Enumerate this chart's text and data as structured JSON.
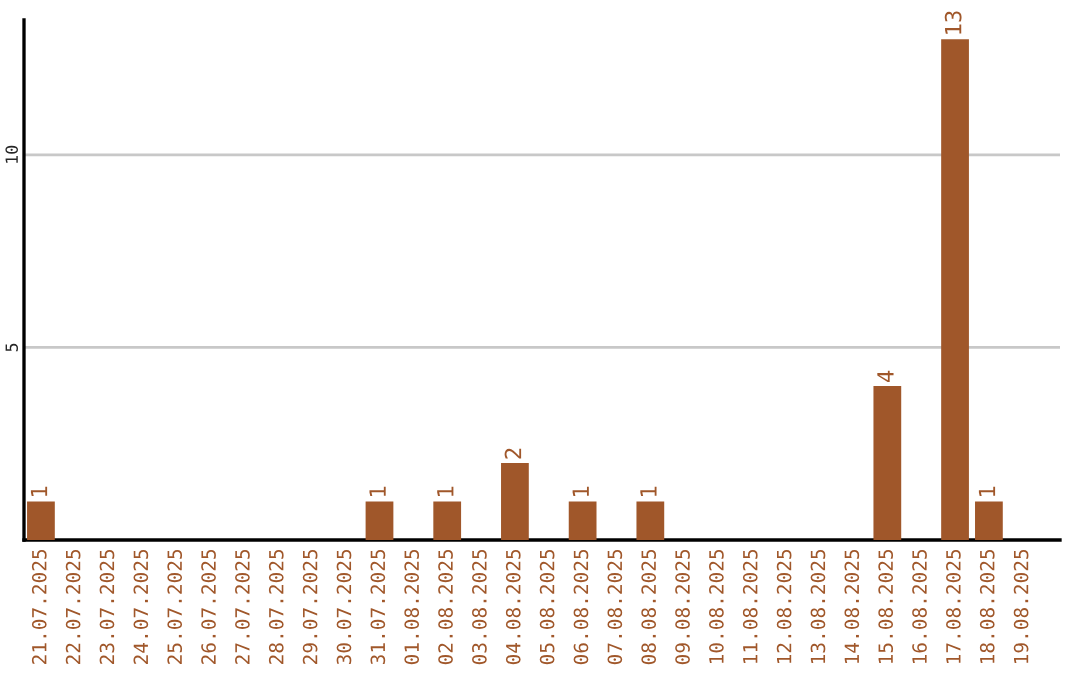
{
  "chart_data": {
    "type": "bar",
    "categories": [
      "21.07.2025",
      "22.07.2025",
      "23.07.2025",
      "24.07.2025",
      "25.07.2025",
      "26.07.2025",
      "27.07.2025",
      "28.07.2025",
      "29.07.2025",
      "30.07.2025",
      "31.07.2025",
      "01.08.2025",
      "02.08.2025",
      "03.08.2025",
      "04.08.2025",
      "05.08.2025",
      "06.08.2025",
      "07.08.2025",
      "08.08.2025",
      "09.08.2025",
      "10.08.2025",
      "11.08.2025",
      "12.08.2025",
      "13.08.2025",
      "14.08.2025",
      "15.08.2025",
      "16.08.2025",
      "17.08.2025",
      "18.08.2025",
      "19.08.2025"
    ],
    "values": [
      1,
      0,
      0,
      0,
      0,
      0,
      0,
      0,
      0,
      0,
      1,
      0,
      1,
      0,
      2,
      0,
      1,
      0,
      1,
      0,
      0,
      0,
      0,
      0,
      0,
      4,
      0,
      13,
      1,
      0
    ],
    "value_labels": [
      "1",
      null,
      null,
      null,
      null,
      null,
      null,
      null,
      null,
      null,
      "1",
      null,
      "1",
      null,
      "2",
      null,
      "1",
      null,
      "1",
      null,
      null,
      null,
      null,
      null,
      null,
      "4",
      null,
      "13",
      "1",
      null
    ],
    "color": "#a0572a",
    "ylim": [
      0,
      13.5
    ],
    "yticks": [
      5,
      10
    ],
    "grid": "y"
  }
}
